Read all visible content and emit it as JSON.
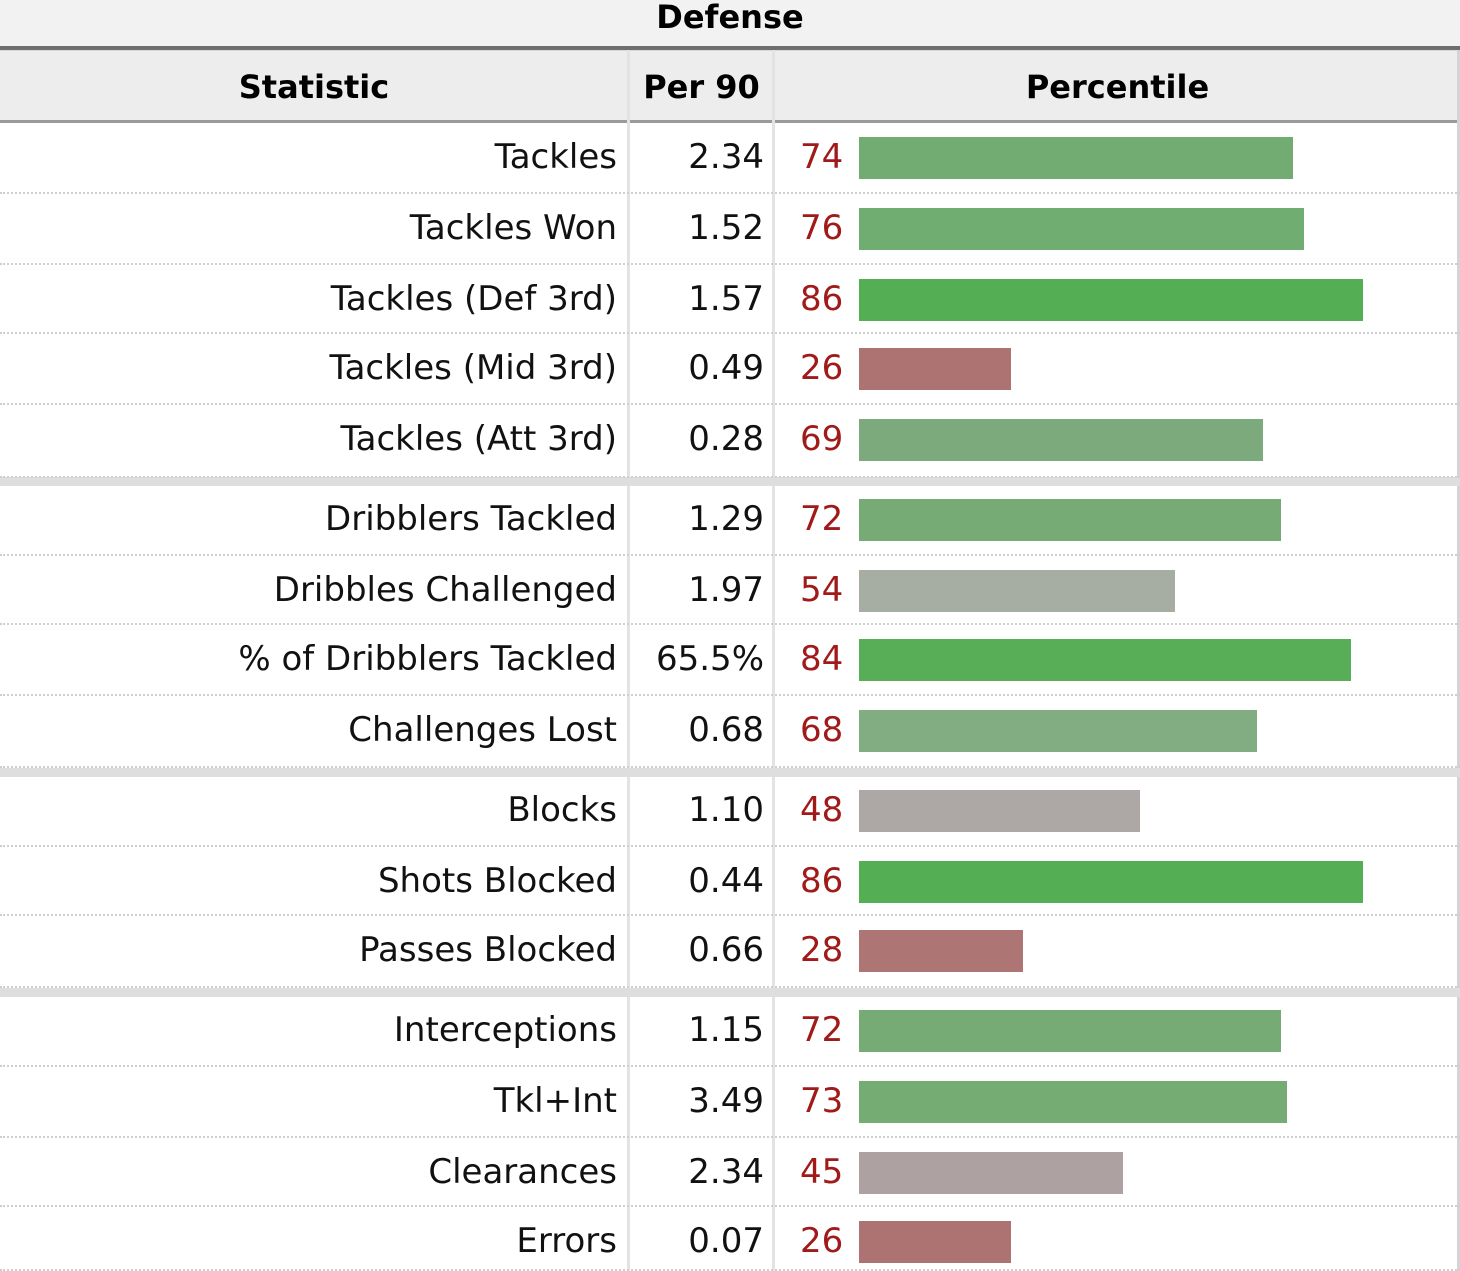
{
  "section_title": "Defense",
  "columns": {
    "statistic": "Statistic",
    "per90": "Per 90",
    "percentile": "Percentile"
  },
  "rows": [
    {
      "statistic": "Tackles",
      "per90": "2.34",
      "percentile": "74",
      "bar_color": "#73ac73"
    },
    {
      "statistic": "Tackles Won",
      "per90": "1.52",
      "percentile": "76",
      "bar_color": "#70ad70"
    },
    {
      "statistic": "Tackles (Def 3rd)",
      "per90": "1.57",
      "percentile": "86",
      "bar_color": "#54ae54"
    },
    {
      "statistic": "Tackles (Mid 3rd)",
      "per90": "0.49",
      "percentile": "26",
      "bar_color": "#ad7372"
    },
    {
      "statistic": "Tackles (Att 3rd)",
      "per90": "0.28",
      "percentile": "69",
      "bar_color": "#7daa7d"
    },
    {
      "statistic": "Dribblers Tackled",
      "per90": "1.29",
      "percentile": "72",
      "bar_color": "#76ab76"
    },
    {
      "statistic": "Dribbles Challenged",
      "per90": "1.97",
      "percentile": "54",
      "bar_color": "#a6ada3"
    },
    {
      "statistic": "% of Dribblers Tackled",
      "per90": "65.5%",
      "percentile": "84",
      "bar_color": "#57ae57"
    },
    {
      "statistic": "Challenges Lost",
      "per90": "0.68",
      "percentile": "68",
      "bar_color": "#82ad82"
    },
    {
      "statistic": "Blocks",
      "per90": "1.10",
      "percentile": "48",
      "bar_color": "#ada8a6"
    },
    {
      "statistic": "Shots Blocked",
      "per90": "0.44",
      "percentile": "86",
      "bar_color": "#54ae54"
    },
    {
      "statistic": "Passes Blocked",
      "per90": "0.66",
      "percentile": "28",
      "bar_color": "#ad7574"
    },
    {
      "statistic": "Interceptions",
      "per90": "1.15",
      "percentile": "72",
      "bar_color": "#76ab76"
    },
    {
      "statistic": "Tkl+Int",
      "per90": "3.49",
      "percentile": "73",
      "bar_color": "#74ac74"
    },
    {
      "statistic": "Clearances",
      "per90": "2.34",
      "percentile": "45",
      "bar_color": "#ada2a1"
    },
    {
      "statistic": "Errors",
      "per90": "0.07",
      "percentile": "26",
      "bar_color": "#ad7372"
    }
  ],
  "group_sizes": [
    5,
    4,
    3,
    4
  ]
}
